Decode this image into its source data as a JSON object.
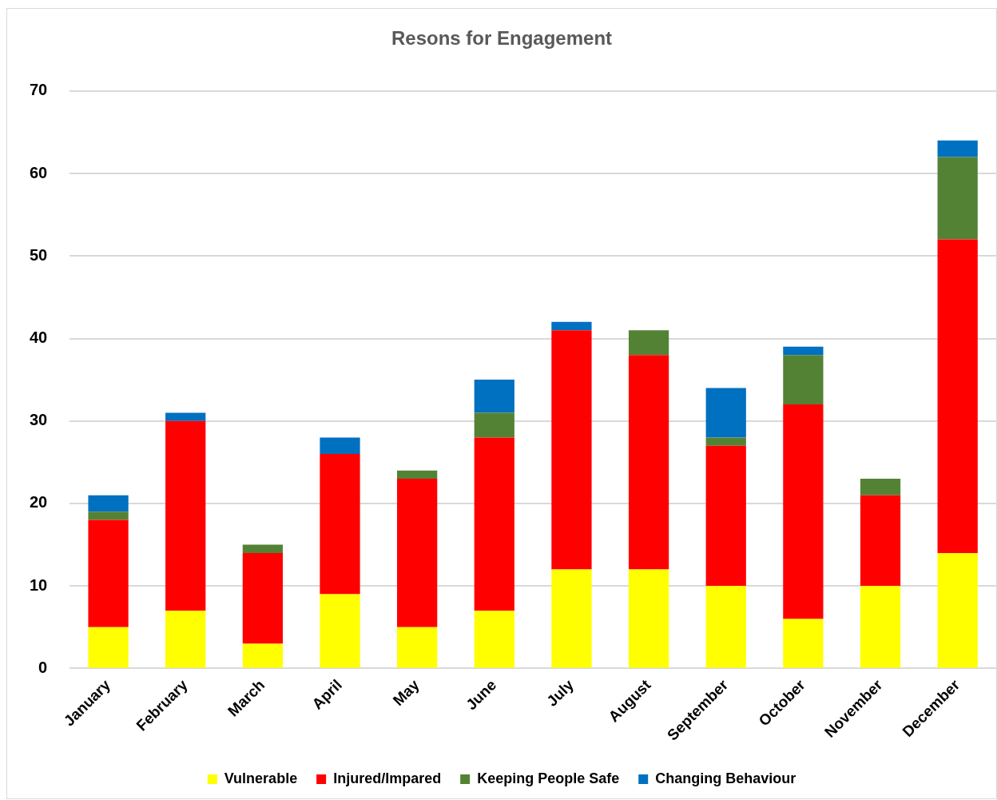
{
  "chart_data": {
    "type": "bar",
    "title": "Resons for Engagement",
    "stacked": true,
    "categories": [
      "January",
      "February",
      "March",
      "April",
      "May",
      "June",
      "July",
      "August",
      "September",
      "October",
      "November",
      "December"
    ],
    "series": [
      {
        "name": "Vulnerable",
        "color": "#ffff00",
        "values": [
          5,
          7,
          3,
          9,
          5,
          7,
          12,
          12,
          10,
          6,
          10,
          14
        ]
      },
      {
        "name": "Injured/Impared",
        "color": "#ff0000",
        "values": [
          13,
          23,
          11,
          17,
          18,
          21,
          29,
          26,
          17,
          26,
          11,
          38
        ]
      },
      {
        "name": "Keeping People Safe",
        "color": "#548235",
        "values": [
          1,
          0,
          1,
          0,
          1,
          3,
          0,
          3,
          1,
          6,
          2,
          10
        ]
      },
      {
        "name": "Changing Behaviour",
        "color": "#0070c0",
        "values": [
          2,
          1,
          0,
          2,
          0,
          4,
          1,
          0,
          6,
          1,
          0,
          2
        ]
      }
    ],
    "ylim": [
      0,
      70
    ],
    "yticks": [
      0,
      10,
      20,
      30,
      40,
      50,
      60,
      70
    ],
    "grid": "y",
    "legend": "bottom"
  }
}
